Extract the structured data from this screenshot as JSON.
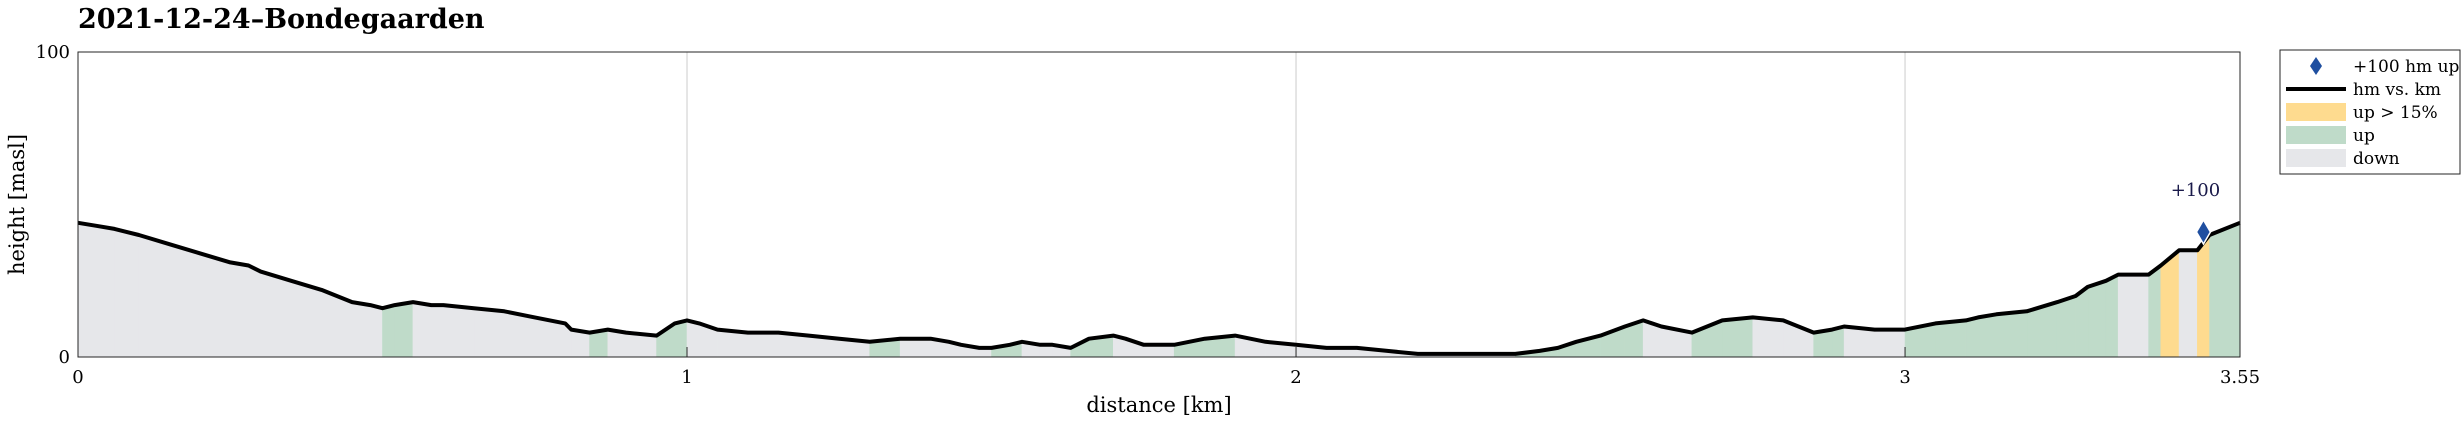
{
  "chart_data": {
    "type": "area",
    "title": "2021-12-24–Bondegaarden",
    "xlabel": "distance [km]",
    "ylabel": "height [masl]",
    "xlim": [
      0,
      3.55
    ],
    "ylim": [
      0,
      100
    ],
    "xticks": [
      {
        "value": 0,
        "label": "0"
      },
      {
        "value": 1,
        "label": "1"
      },
      {
        "value": 2,
        "label": "2"
      },
      {
        "value": 3,
        "label": "3"
      },
      {
        "value": 3.55,
        "label": "3.55"
      }
    ],
    "yticks": [
      {
        "value": 0,
        "label": "0"
      },
      {
        "value": 100,
        "label": "100"
      }
    ],
    "grid": "vertical",
    "legend_position": "outside-right-top",
    "colors": {
      "line": "#000000",
      "up": "#bfdbc9",
      "up_steep": "#fedb8f",
      "down": "#e6e7ea",
      "marker": "#1f4fa0",
      "grid": "#dddddd",
      "axes": "#262626"
    },
    "legend": [
      {
        "key": "marker",
        "label": "+100 hm up"
      },
      {
        "key": "line",
        "label": "hm vs. km"
      },
      {
        "key": "up_steep",
        "label": "up > 15%"
      },
      {
        "key": "up",
        "label": "up"
      },
      {
        "key": "down",
        "label": "down"
      }
    ],
    "series": [
      {
        "name": "hm vs. km",
        "x": [
          0,
          0.03,
          0.06,
          0.1,
          0.15,
          0.2,
          0.25,
          0.28,
          0.3,
          0.35,
          0.4,
          0.45,
          0.48,
          0.5,
          0.52,
          0.55,
          0.58,
          0.6,
          0.65,
          0.7,
          0.75,
          0.8,
          0.81,
          0.84,
          0.87,
          0.9,
          0.95,
          0.98,
          1.0,
          1.02,
          1.05,
          1.1,
          1.15,
          1.2,
          1.25,
          1.3,
          1.35,
          1.4,
          1.43,
          1.45,
          1.48,
          1.5,
          1.53,
          1.55,
          1.58,
          1.6,
          1.63,
          1.66,
          1.7,
          1.72,
          1.75,
          1.78,
          1.8,
          1.85,
          1.9,
          1.95,
          2.0,
          2.05,
          2.1,
          2.15,
          2.2,
          2.25,
          2.28,
          2.3,
          2.33,
          2.36,
          2.4,
          2.43,
          2.46,
          2.5,
          2.54,
          2.57,
          2.6,
          2.65,
          2.7,
          2.75,
          2.8,
          2.85,
          2.88,
          2.9,
          2.95,
          3.0,
          3.05,
          3.1,
          3.12,
          3.15,
          3.2,
          3.25,
          3.28,
          3.3,
          3.33,
          3.35,
          3.4,
          3.42,
          3.45,
          3.48,
          3.5,
          3.55
        ],
        "y": [
          44,
          43,
          42,
          40,
          37,
          34,
          31,
          30,
          28,
          25,
          22,
          18,
          17,
          16,
          17,
          18,
          17,
          17,
          16,
          15,
          13,
          11,
          9,
          8,
          9,
          8,
          7,
          11,
          12,
          11,
          9,
          8,
          8,
          7,
          6,
          5,
          6,
          6,
          5,
          4,
          3,
          3,
          4,
          5,
          4,
          4,
          3,
          6,
          7,
          6,
          4,
          4,
          4,
          6,
          7,
          5,
          4,
          3,
          3,
          2,
          1,
          1,
          1,
          1,
          1,
          1,
          2,
          3,
          5,
          7,
          10,
          12,
          10,
          8,
          12,
          13,
          12,
          8,
          9,
          10,
          9,
          9,
          11,
          12,
          13,
          14,
          15,
          18,
          20,
          23,
          25,
          27,
          27,
          30,
          35,
          35,
          40,
          44
        ]
      }
    ],
    "annotations": [
      {
        "x": 3.49,
        "y": 41,
        "text": "+100"
      }
    ]
  }
}
